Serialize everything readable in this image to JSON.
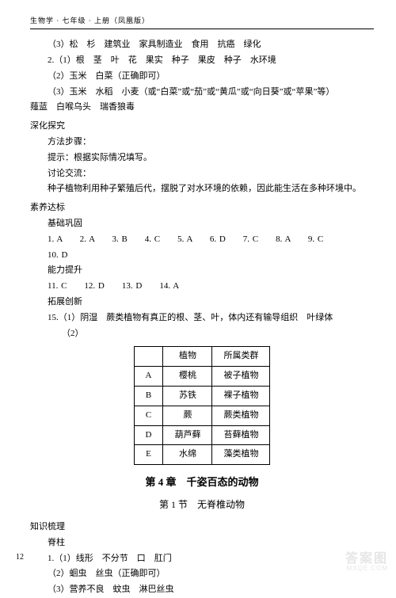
{
  "header": "生物学 · 七年级 · 上册（凤凰版）",
  "lines": {
    "l1": "（3）松　杉　建筑业　家具制造业　食用　抗癌　绿化",
    "l2": "2.（1）根　茎　叶　花　果实　种子　果皮　种子　水环境",
    "l3": "（2）玉米　白菜（正确即可）",
    "l4": "（3）玉米　水稻　小麦（或“白菜”或“茄”或“黄瓜”或“向日葵”或“苹果”等）",
    "l5": "薤蓝　白喉乌头　瑞香狼毒"
  },
  "deep": {
    "title": "深化探究",
    "s1": "方法步骤：",
    "s2": "提示：根据实际情况填写。",
    "s3": "讨论交流：",
    "s4": "种子植物利用种子繁殖后代，摆脱了对水环境的依赖，因此能生活在多种环境中。"
  },
  "std": {
    "title": "素养达标",
    "base": "基础巩固",
    "row1": "1. A　　2. A　　3. B　　4. C　　5. A　　6. D　　7. C　　8. A　　9. C",
    "row2": "10. D",
    "ability": "能力提升",
    "row3": "11. C　　12. D　　13. D　　14. A",
    "innovate": "拓展创新",
    "q15_1": "15.（1）阴湿　蕨类植物有真正的根、茎、叶，体内还有输导组织　叶绿体",
    "q15_2": "（2）"
  },
  "table": {
    "h1": "",
    "h2": "植物",
    "h3": "所属类群",
    "rows": [
      [
        "A",
        "樱桃",
        "被子植物"
      ],
      [
        "B",
        "苏铁",
        "裸子植物"
      ],
      [
        "C",
        "蕨",
        "蕨类植物"
      ],
      [
        "D",
        "葫芦藓",
        "苔藓植物"
      ],
      [
        "E",
        "水绵",
        "藻类植物"
      ]
    ]
  },
  "chapter": {
    "title": "第 4 章　千姿百态的动物",
    "section": "第 1 节　无脊椎动物"
  },
  "know": {
    "title": "知识梳理",
    "s0": "脊柱",
    "s1": "1.（1）线形　不分节　口　肛门",
    "s2": "（2）蛔虫　丝虫（正确即可）",
    "s3": "（3）营养不良　蚊虫　淋巴丝虫"
  },
  "pageNum": "12",
  "wm1": "答案图",
  "wm2": "MXQE.COM"
}
